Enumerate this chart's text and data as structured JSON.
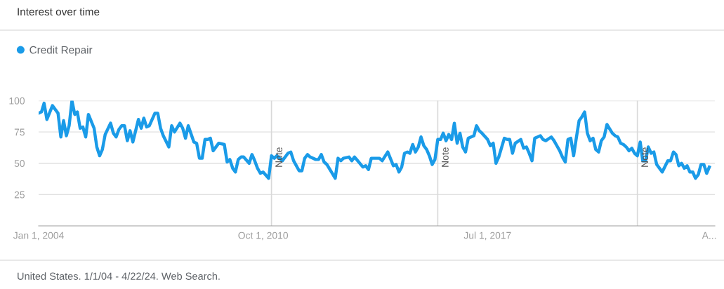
{
  "chart_data": {
    "type": "line",
    "title": "Interest over time",
    "x": [
      "2004-01",
      "2004-02",
      "2004-03",
      "2004-04",
      "2004-06",
      "2004-08",
      "2004-09",
      "2004-10",
      "2004-11",
      "2004-12",
      "2005-01",
      "2005-02",
      "2005-03",
      "2005-04",
      "2005-05",
      "2005-06",
      "2005-07",
      "2005-09",
      "2005-10",
      "2005-11",
      "2005-12",
      "2006-01",
      "2006-03",
      "2006-04",
      "2006-05",
      "2006-06",
      "2006-07",
      "2006-08",
      "2006-09",
      "2006-10",
      "2006-11",
      "2007-01",
      "2007-02",
      "2007-03",
      "2007-04",
      "2007-05",
      "2007-07",
      "2007-08",
      "2007-09",
      "2007-10",
      "2007-12",
      "2008-01",
      "2008-02",
      "2008-04",
      "2008-05",
      "2008-06",
      "2008-07",
      "2008-09",
      "2008-10",
      "2008-11",
      "2008-12",
      "2009-01",
      "2009-02",
      "2009-03",
      "2009-04",
      "2009-06",
      "2009-08",
      "2009-09",
      "2009-10",
      "2009-11",
      "2009-12",
      "2010-01",
      "2010-02",
      "2010-03",
      "2010-05",
      "2010-06",
      "2010-07",
      "2010-08",
      "2010-09",
      "2010-10",
      "2010-12",
      "2011-01",
      "2011-02",
      "2011-03",
      "2011-05",
      "2011-07",
      "2011-08",
      "2011-09",
      "2011-11",
      "2011-12",
      "2012-01",
      "2012-02",
      "2012-03",
      "2012-05",
      "2012-06",
      "2012-07",
      "2012-08",
      "2012-09",
      "2012-12",
      "2013-01",
      "2013-02",
      "2013-03",
      "2013-05",
      "2013-06",
      "2013-07",
      "2013-10",
      "2013-11",
      "2013-12",
      "2014-01",
      "2014-04",
      "2014-05",
      "2014-07",
      "2014-09",
      "2014-10",
      "2014-11",
      "2014-12",
      "2015-01",
      "2015-02",
      "2015-03",
      "2015-04",
      "2015-05",
      "2015-06",
      "2015-07",
      "2015-08",
      "2015-09",
      "2015-10",
      "2015-11",
      "2015-12",
      "2016-01",
      "2016-02",
      "2016-03",
      "2016-04",
      "2016-05",
      "2016-06",
      "2016-07",
      "2016-08",
      "2016-09",
      "2016-10",
      "2016-11",
      "2016-12",
      "2017-02",
      "2017-03",
      "2017-04",
      "2017-05",
      "2017-07",
      "2017-08",
      "2017-09",
      "2017-10",
      "2017-11",
      "2018-01",
      "2018-02",
      "2018-03",
      "2018-04",
      "2018-05",
      "2018-07",
      "2018-08",
      "2018-09",
      "2018-10",
      "2018-11",
      "2018-12",
      "2019-01",
      "2019-02",
      "2019-03",
      "2019-04",
      "2019-06",
      "2019-07",
      "2019-08",
      "2019-09",
      "2019-10",
      "2019-11",
      "2019-12",
      "2020-01",
      "2020-02",
      "2020-03",
      "2020-04",
      "2020-05",
      "2020-06",
      "2020-07",
      "2020-08",
      "2020-09",
      "2020-10",
      "2020-11",
      "2020-12",
      "2021-01",
      "2021-02",
      "2021-04",
      "2021-05",
      "2021-06",
      "2021-07",
      "2021-08",
      "2021-09",
      "2021-10",
      "2021-11",
      "2021-12",
      "2022-01",
      "2022-02",
      "2022-03",
      "2022-04",
      "2022-05",
      "2022-06",
      "2022-07",
      "2022-08",
      "2022-09",
      "2022-10",
      "2022-12",
      "2023-01",
      "2023-02",
      "2023-03",
      "2023-04",
      "2023-05",
      "2023-06",
      "2023-07",
      "2023-08",
      "2023-09",
      "2023-10",
      "2023-11",
      "2023-12",
      "2024-01",
      "2024-02",
      "2024-03"
    ],
    "series": [
      {
        "name": "Credit Repair",
        "color": "#1a9be8",
        "values": [
          90,
          91,
          98,
          85,
          96,
          90,
          71,
          84,
          72,
          80,
          100,
          89,
          91,
          78,
          79,
          71,
          89,
          78,
          63,
          56,
          61,
          73,
          82,
          74,
          71,
          77,
          80,
          80,
          68,
          76,
          67,
          85,
          78,
          86,
          79,
          80,
          90,
          90,
          78,
          72,
          63,
          80,
          75,
          82,
          78,
          70,
          80,
          67,
          66,
          54,
          54,
          69,
          69,
          70,
          60,
          66,
          65,
          51,
          53,
          46,
          43,
          53,
          55,
          55,
          50,
          57,
          52,
          46,
          42,
          43,
          38,
          56,
          54,
          56,
          52,
          58,
          59,
          52,
          44,
          44,
          54,
          57,
          55,
          53,
          53,
          57,
          51,
          49,
          38,
          54,
          52,
          54,
          55,
          52,
          55,
          47,
          48,
          45,
          54,
          54,
          52,
          59,
          48,
          49,
          43,
          47,
          58,
          59,
          58,
          65,
          59,
          63,
          71,
          64,
          61,
          56,
          49,
          53,
          69,
          69,
          74,
          68,
          73,
          69,
          82,
          66,
          74,
          63,
          59,
          70,
          72,
          80,
          76,
          74,
          69,
          64,
          66,
          50,
          55,
          70,
          69,
          69,
          58,
          66,
          69,
          62,
          63,
          58,
          52,
          70,
          71,
          72,
          69,
          68,
          71,
          68,
          64,
          60,
          55,
          51,
          69,
          70,
          56,
          70,
          84,
          87,
          91,
          74,
          68,
          70,
          61,
          59,
          68,
          71,
          81,
          74,
          72,
          71,
          66,
          65,
          63,
          60,
          62,
          58,
          56,
          67,
          52,
          52,
          63,
          58,
          59,
          49,
          46,
          43,
          52,
          52,
          59,
          57,
          48,
          50,
          46,
          48,
          43,
          43,
          38,
          41,
          49,
          49,
          42,
          47
        ]
      }
    ],
    "xlim": [
      "2004-01-01",
      "2024-05-01"
    ],
    "xticks": [
      {
        "value": "2004-01-01",
        "label": "Jan 1, 2004"
      },
      {
        "value": "2010-10-01",
        "label": "Oct 1, 2010"
      },
      {
        "value": "2017-07-01",
        "label": "Jul 1, 2017"
      },
      {
        "value": "2024-03-01",
        "label": "A..."
      }
    ],
    "ylim": [
      0,
      100
    ],
    "yticks": [
      25,
      50,
      75,
      100
    ],
    "grid": "y",
    "legend": "top left",
    "marker": "none",
    "line_style": "solid",
    "ref_lines": [
      {
        "axis": "x",
        "value": "2011-01-01",
        "label": "Note",
        "color": "#d9d9d9"
      },
      {
        "axis": "x",
        "value": "2016-01-01",
        "label": "Note",
        "color": "#d9d9d9"
      },
      {
        "axis": "x",
        "value": "2022-01-01",
        "label": "Note",
        "color": "#d9d9d9"
      }
    ],
    "annotations": [
      "United States. 1/1/04 - 4/22/24. Web Search."
    ]
  }
}
